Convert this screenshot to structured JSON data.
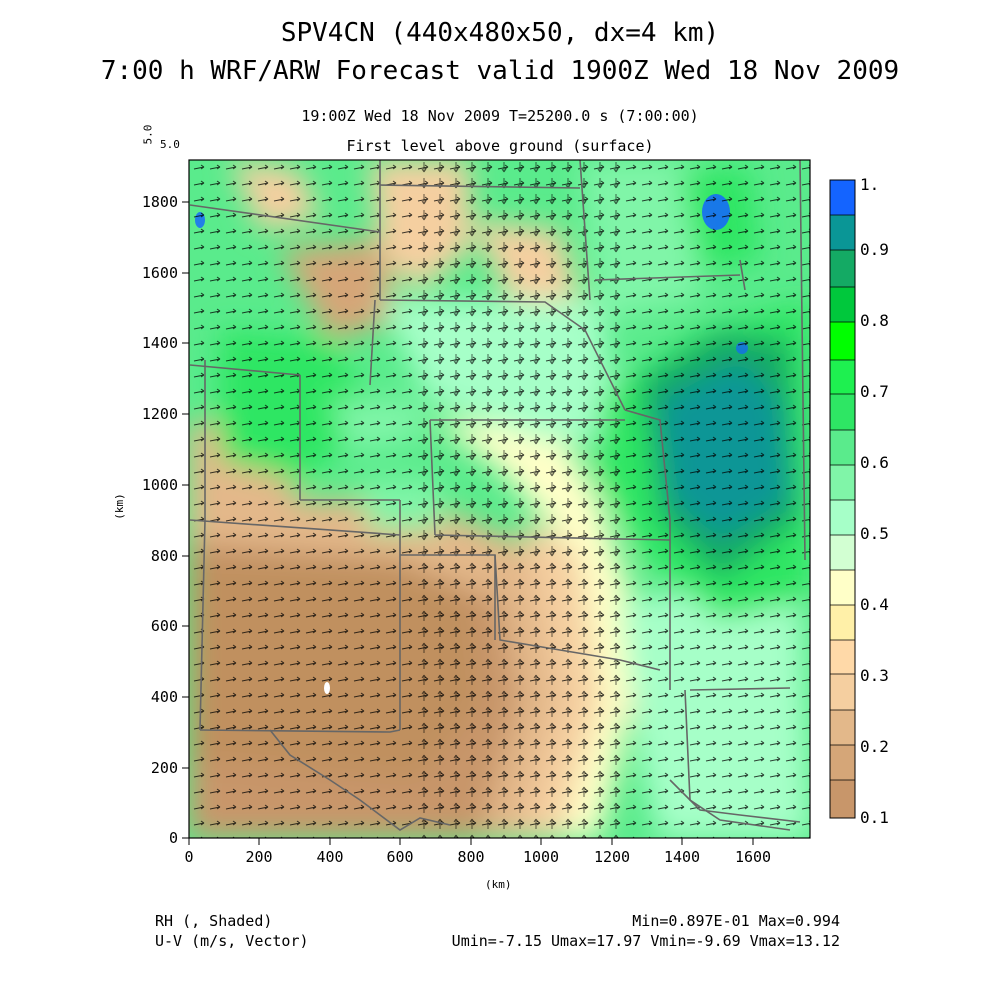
{
  "header": {
    "title_line1": "SPV4CN (440x480x50, dx=4 km)",
    "title_line2": "7:00 h WRF/ARW Forecast valid 1900Z Wed 18 Nov 2009",
    "time_line": "19:00Z Wed 18 Nov 2009     T=25200.0 s (7:00:00)",
    "level_line": "First level above ground (surface)"
  },
  "vector_ref": {
    "vertical_label": "5.0",
    "label": "5.0"
  },
  "map": {
    "x_axis": {
      "label": "(km)",
      "min": 0,
      "max": 1760,
      "ticks": [
        "0",
        "200",
        "400",
        "600",
        "800",
        "1000",
        "1200",
        "1400",
        "1600"
      ]
    },
    "y_axis": {
      "label": "(km)",
      "min": 0,
      "max": 1920,
      "ticks": [
        "0",
        "200",
        "400",
        "600",
        "800",
        "1000",
        "1200",
        "1400",
        "1600",
        "1800"
      ]
    },
    "field": "relative humidity shaded with wind vectors and state boundaries"
  },
  "colorbar": {
    "ticks": [
      "1.",
      "0.9",
      "0.8",
      "0.7",
      "0.6",
      "0.5",
      "0.4",
      "0.3",
      "0.2",
      "0.1"
    ],
    "colors": [
      "#c8966a",
      "#d5a678",
      "#e3b88a",
      "#f5cfa0",
      "#fff0a8",
      "#ffffc8",
      "#d2ffd2",
      "#a6ffc8",
      "#80f5a8",
      "#5aeb8c",
      "#2ee664",
      "#00ff00",
      "#00c83c",
      "#14aa64",
      "#0a9696",
      "#1464ff"
    ]
  },
  "footer": {
    "left1": "RH (, Shaded)",
    "left2": "U-V (m/s, Vector)",
    "right1": "Min=0.897E-01 Max=0.994",
    "right2": "Umin=-7.15 Umax=17.97 Vmin=-9.69 Vmax=13.12"
  }
}
